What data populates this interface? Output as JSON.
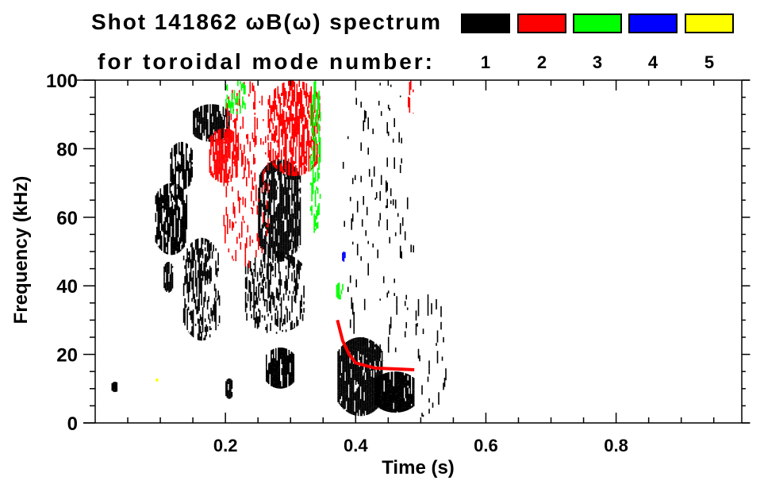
{
  "chart_data": {
    "type": "heatmap",
    "title": "Shot 141862 ωB(ω) spectrum",
    "subtitle": "for toroidal mode number:",
    "xlabel": "Time (s)",
    "ylabel": "Frequency (kHz)",
    "xlim": [
      0,
      0.993
    ],
    "ylim": [
      0,
      100
    ],
    "xticks": [
      0.2,
      0.4,
      0.6,
      0.8
    ],
    "xtick_labels": [
      "0.2",
      "0.4",
      "0.6",
      "0.8"
    ],
    "x_minor_step": 0.05,
    "yticks": [
      0,
      20,
      40,
      60,
      80,
      100
    ],
    "ytick_labels": [
      "0",
      "20",
      "40",
      "60",
      "80",
      "100"
    ],
    "y_minor_step": 5,
    "legend": [
      {
        "label": "1",
        "color": "#000000"
      },
      {
        "label": "2",
        "color": "#ff0000"
      },
      {
        "label": "3",
        "color": "#00ff00"
      },
      {
        "label": "4",
        "color": "#0000ff"
      },
      {
        "label": "5",
        "color": "#ffff00"
      }
    ],
    "regions": [
      {
        "mode": 1,
        "t": [
          0.092,
          0.14
        ],
        "f": [
          49,
          70
        ],
        "density": 0.75
      },
      {
        "mode": 1,
        "t": [
          0.115,
          0.148
        ],
        "f": [
          68,
          82
        ],
        "density": 0.7
      },
      {
        "mode": 1,
        "t": [
          0.15,
          0.205
        ],
        "f": [
          82,
          93
        ],
        "density": 0.75
      },
      {
        "mode": 1,
        "t": [
          0.105,
          0.118
        ],
        "f": [
          38,
          47
        ],
        "density": 0.8
      },
      {
        "mode": 1,
        "t": [
          0.135,
          0.19
        ],
        "f": [
          24,
          54
        ],
        "density": 0.45
      },
      {
        "mode": 1,
        "t": [
          0.25,
          0.315
        ],
        "f": [
          47,
          77
        ],
        "density": 0.8
      },
      {
        "mode": 1,
        "t": [
          0.23,
          0.32
        ],
        "f": [
          26,
          50
        ],
        "density": 0.35
      },
      {
        "mode": 1,
        "t": [
          0.262,
          0.305
        ],
        "f": [
          10,
          22
        ],
        "density": 0.8
      },
      {
        "mode": 1,
        "t": [
          0.2,
          0.21
        ],
        "f": [
          7,
          13
        ],
        "density": 0.9
      },
      {
        "mode": 1,
        "t": [
          0.025,
          0.034
        ],
        "f": [
          9,
          12
        ],
        "density": 0.9
      },
      {
        "mode": 1,
        "t": [
          0.372,
          0.44
        ],
        "f": [
          2,
          25
        ],
        "density": 0.9
      },
      {
        "mode": 1,
        "t": [
          0.43,
          0.49
        ],
        "f": [
          3,
          15
        ],
        "density": 0.92
      },
      {
        "mode": 1,
        "t": [
          0.38,
          0.49
        ],
        "f": [
          18,
          100
        ],
        "density": 0.05
      },
      {
        "mode": 1,
        "t": [
          0.49,
          0.54
        ],
        "f": [
          0,
          40
        ],
        "density": 0.05
      },
      {
        "mode": 2,
        "t": [
          0.175,
          0.22
        ],
        "f": [
          70,
          86
        ],
        "density": 0.7
      },
      {
        "mode": 2,
        "t": [
          0.265,
          0.345
        ],
        "f": [
          72,
          100
        ],
        "density": 0.6
      },
      {
        "mode": 2,
        "t": [
          0.195,
          0.265
        ],
        "f": [
          45,
          100
        ],
        "density": 0.15
      },
      {
        "mode": 2,
        "t": [
          0.48,
          0.49
        ],
        "f": [
          90,
          100
        ],
        "density": 0.4
      },
      {
        "mode": 3,
        "t": [
          0.2,
          0.23
        ],
        "f": [
          90,
          100
        ],
        "density": 0.35
      },
      {
        "mode": 3,
        "t": [
          0.33,
          0.345
        ],
        "f": [
          55,
          100
        ],
        "density": 0.45
      },
      {
        "mode": 3,
        "t": [
          0.37,
          0.38
        ],
        "f": [
          36,
          41
        ],
        "density": 0.8
      },
      {
        "mode": 4,
        "t": [
          0.379,
          0.383
        ],
        "f": [
          47,
          50
        ],
        "density": 0.9
      },
      {
        "mode": 5,
        "t": [
          0.093,
          0.095
        ],
        "f": [
          12,
          13
        ],
        "density": 1.0
      }
    ],
    "chirps": [
      {
        "mode": 2,
        "points": [
          [
            0.372,
            30
          ],
          [
            0.38,
            24
          ],
          [
            0.39,
            20
          ],
          [
            0.4,
            17.5
          ],
          [
            0.43,
            16
          ],
          [
            0.49,
            15.5
          ]
        ]
      }
    ]
  }
}
